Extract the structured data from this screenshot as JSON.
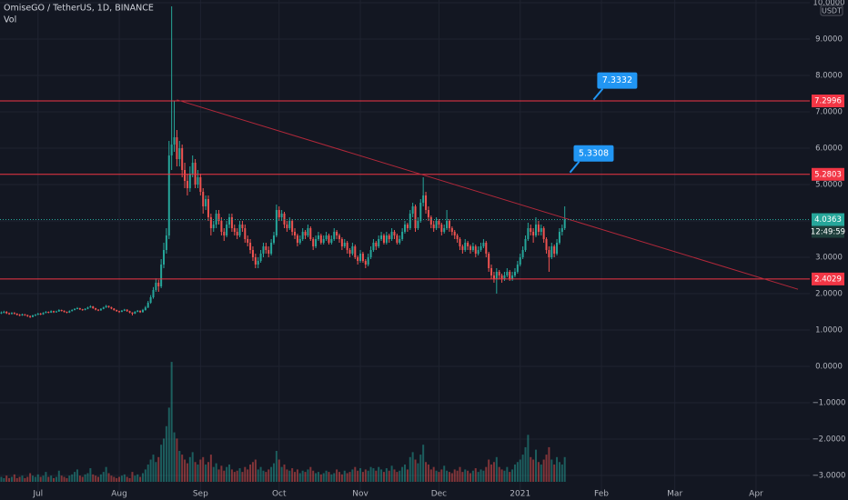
{
  "chart_data": {
    "type": "candlestick",
    "title": "OmiseGO / TetherUS, 1D, BINANCE",
    "volume_label": "Vol",
    "unit": "USDT",
    "up_color": "#26a69a",
    "down_color": "#ef5350",
    "level_color": "#f23645",
    "callout_color": "#2196f3",
    "grid": true,
    "xlim": [
      -0.5,
      308.5
    ],
    "xticks": [
      {
        "value": 14,
        "label": "Jul"
      },
      {
        "value": 45,
        "label": "Aug"
      },
      {
        "value": 76,
        "label": "Sep"
      },
      {
        "value": 106,
        "label": "Oct"
      },
      {
        "value": 137,
        "label": "Nov"
      },
      {
        "value": 167,
        "label": "Dec"
      },
      {
        "value": 198,
        "label": "2021"
      },
      {
        "value": 229,
        "label": "Feb"
      },
      {
        "value": 257,
        "label": "Mar"
      },
      {
        "value": 288,
        "label": "Apr"
      }
    ],
    "ylim": [
      -3.425,
      10.075
    ],
    "yticks": [
      {
        "value": 10,
        "label": "10.0000"
      },
      {
        "value": 9,
        "label": "9.0000"
      },
      {
        "value": 8,
        "label": "8.0000"
      },
      {
        "value": 7,
        "label": "7.0000"
      },
      {
        "value": 6,
        "label": "6.0000"
      },
      {
        "value": 5,
        "label": "5.0000"
      },
      {
        "value": 4,
        "label": "4.0000"
      },
      {
        "value": 3,
        "label": "3.0000"
      },
      {
        "value": 2,
        "label": "2.0000"
      },
      {
        "value": 1,
        "label": "1.0000"
      },
      {
        "value": 0,
        "label": "0.0000"
      },
      {
        "value": -1,
        "label": "−1.0000"
      },
      {
        "value": -2,
        "label": "−2.0000"
      },
      {
        "value": -3,
        "label": "−3.0000"
      }
    ],
    "vol_ylim": [
      0,
      100
    ],
    "levels": [
      7.2996,
      5.2803,
      2.4029
    ],
    "last_price": 4.0363,
    "countdown": "12:49:59",
    "trendline": {
      "x": [
        67,
        304
      ],
      "y": [
        7.33,
        2.12
      ]
    },
    "callouts": [
      {
        "x": 226,
        "value": 7.3332
      },
      {
        "x": 217,
        "value": 5.3308
      }
    ],
    "candles": [
      [
        1.46,
        1.51,
        1.44,
        1.48
      ],
      [
        1.48,
        1.53,
        1.46,
        1.5
      ],
      [
        1.5,
        1.52,
        1.44,
        1.46
      ],
      [
        1.46,
        1.48,
        1.42,
        1.44
      ],
      [
        1.44,
        1.49,
        1.43,
        1.47
      ],
      [
        1.47,
        1.49,
        1.43,
        1.45
      ],
      [
        1.45,
        1.46,
        1.4,
        1.42
      ],
      [
        1.42,
        1.44,
        1.38,
        1.4
      ],
      [
        1.4,
        1.45,
        1.39,
        1.43
      ],
      [
        1.43,
        1.44,
        1.39,
        1.41
      ],
      [
        1.41,
        1.42,
        1.36,
        1.38
      ],
      [
        1.38,
        1.4,
        1.33,
        1.36
      ],
      [
        1.36,
        1.42,
        1.35,
        1.4
      ],
      [
        1.4,
        1.44,
        1.38,
        1.42
      ],
      [
        1.42,
        1.47,
        1.41,
        1.45
      ],
      [
        1.45,
        1.47,
        1.41,
        1.43
      ],
      [
        1.43,
        1.49,
        1.42,
        1.47
      ],
      [
        1.47,
        1.52,
        1.46,
        1.5
      ],
      [
        1.5,
        1.51,
        1.46,
        1.48
      ],
      [
        1.48,
        1.54,
        1.47,
        1.52
      ],
      [
        1.52,
        1.53,
        1.47,
        1.49
      ],
      [
        1.49,
        1.53,
        1.48,
        1.51
      ],
      [
        1.51,
        1.57,
        1.5,
        1.55
      ],
      [
        1.55,
        1.56,
        1.51,
        1.53
      ],
      [
        1.53,
        1.54,
        1.48,
        1.5
      ],
      [
        1.5,
        1.51,
        1.46,
        1.48
      ],
      [
        1.48,
        1.54,
        1.47,
        1.52
      ],
      [
        1.52,
        1.57,
        1.51,
        1.55
      ],
      [
        1.55,
        1.6,
        1.54,
        1.58
      ],
      [
        1.58,
        1.63,
        1.57,
        1.6
      ],
      [
        1.6,
        1.61,
        1.55,
        1.57
      ],
      [
        1.57,
        1.58,
        1.53,
        1.55
      ],
      [
        1.55,
        1.6,
        1.54,
        1.58
      ],
      [
        1.58,
        1.64,
        1.57,
        1.62
      ],
      [
        1.62,
        1.68,
        1.61,
        1.65
      ],
      [
        1.65,
        1.66,
        1.58,
        1.6
      ],
      [
        1.6,
        1.61,
        1.54,
        1.56
      ],
      [
        1.56,
        1.57,
        1.52,
        1.54
      ],
      [
        1.54,
        1.6,
        1.53,
        1.58
      ],
      [
        1.58,
        1.64,
        1.57,
        1.62
      ],
      [
        1.62,
        1.69,
        1.61,
        1.66
      ],
      [
        1.66,
        1.67,
        1.61,
        1.63
      ],
      [
        1.63,
        1.64,
        1.57,
        1.59
      ],
      [
        1.59,
        1.6,
        1.53,
        1.55
      ],
      [
        1.55,
        1.56,
        1.5,
        1.52
      ],
      [
        1.52,
        1.53,
        1.47,
        1.5
      ],
      [
        1.5,
        1.55,
        1.49,
        1.53
      ],
      [
        1.53,
        1.58,
        1.52,
        1.56
      ],
      [
        1.56,
        1.57,
        1.5,
        1.52
      ],
      [
        1.52,
        1.53,
        1.46,
        1.48
      ],
      [
        1.48,
        1.49,
        1.4,
        1.45
      ],
      [
        1.45,
        1.52,
        1.44,
        1.5
      ],
      [
        1.5,
        1.55,
        1.49,
        1.53
      ],
      [
        1.53,
        1.54,
        1.47,
        1.49
      ],
      [
        1.49,
        1.58,
        1.48,
        1.55
      ],
      [
        1.55,
        1.66,
        1.53,
        1.62
      ],
      [
        1.62,
        1.8,
        1.6,
        1.75
      ],
      [
        1.75,
        1.96,
        1.72,
        1.9
      ],
      [
        1.9,
        2.18,
        1.86,
        2.1
      ],
      [
        2.1,
        2.42,
        2.05,
        2.3
      ],
      [
        2.3,
        2.38,
        2.05,
        2.2
      ],
      [
        2.2,
        2.95,
        2.15,
        2.8
      ],
      [
        2.8,
        3.4,
        2.7,
        3.2
      ],
      [
        3.2,
        3.8,
        3.1,
        3.6
      ],
      [
        3.6,
        6.2,
        3.5,
        5.8
      ],
      [
        5.8,
        9.9,
        5.4,
        6.1
      ],
      [
        6.1,
        7.3,
        5.9,
        6.3
      ],
      [
        6.3,
        6.5,
        5.5,
        5.7
      ],
      [
        5.7,
        6.2,
        5.5,
        6.0
      ],
      [
        6.0,
        6.1,
        5.2,
        5.4
      ],
      [
        5.4,
        5.6,
        4.9,
        5.1
      ],
      [
        5.1,
        5.3,
        4.7,
        4.9
      ],
      [
        4.9,
        5.5,
        4.8,
        5.3
      ],
      [
        5.3,
        5.8,
        5.2,
        5.6
      ],
      [
        5.6,
        5.7,
        4.9,
        5.0
      ],
      [
        5.0,
        5.4,
        4.9,
        5.2
      ],
      [
        5.2,
        5.3,
        4.7,
        4.8
      ],
      [
        4.8,
        4.9,
        4.2,
        4.4
      ],
      [
        4.4,
        4.7,
        4.3,
        4.6
      ],
      [
        4.6,
        4.7,
        4.0,
        4.1
      ],
      [
        4.1,
        4.2,
        3.6,
        3.8
      ],
      [
        3.8,
        4.0,
        3.7,
        3.9
      ],
      [
        3.9,
        4.3,
        3.8,
        4.2
      ],
      [
        4.2,
        4.3,
        3.9,
        4.0
      ],
      [
        4.0,
        4.1,
        3.6,
        3.7
      ],
      [
        3.7,
        3.8,
        3.45,
        3.6
      ],
      [
        3.6,
        4.0,
        3.55,
        3.9
      ],
      [
        3.9,
        4.2,
        3.8,
        4.1
      ],
      [
        4.1,
        4.2,
        3.7,
        3.8
      ],
      [
        3.8,
        3.9,
        3.6,
        3.7
      ],
      [
        3.7,
        3.8,
        3.5,
        3.6
      ],
      [
        3.6,
        4.0,
        3.55,
        3.9
      ],
      [
        3.9,
        4.0,
        3.7,
        3.8
      ],
      [
        3.8,
        3.9,
        3.4,
        3.5
      ],
      [
        3.5,
        3.6,
        3.3,
        3.4
      ],
      [
        3.4,
        3.5,
        3.1,
        3.2
      ],
      [
        3.2,
        3.3,
        2.9,
        3.0
      ],
      [
        3.0,
        3.1,
        2.7,
        2.8
      ],
      [
        2.8,
        3.0,
        2.7,
        2.9
      ],
      [
        2.9,
        3.2,
        2.85,
        3.1
      ],
      [
        3.1,
        3.4,
        3.0,
        3.3
      ],
      [
        3.3,
        3.4,
        3.1,
        3.2
      ],
      [
        3.2,
        3.3,
        3.0,
        3.1
      ],
      [
        3.1,
        3.5,
        3.05,
        3.4
      ],
      [
        3.4,
        3.7,
        3.35,
        3.6
      ],
      [
        3.6,
        4.45,
        3.55,
        4.3
      ],
      [
        4.3,
        4.4,
        4.0,
        4.1
      ],
      [
        4.1,
        4.3,
        4.0,
        4.2
      ],
      [
        4.2,
        4.25,
        3.8,
        3.9
      ],
      [
        3.9,
        4.0,
        3.7,
        3.8
      ],
      [
        3.8,
        4.1,
        3.75,
        4.0
      ],
      [
        4.0,
        4.05,
        3.6,
        3.7
      ],
      [
        3.7,
        3.8,
        3.5,
        3.6
      ],
      [
        3.6,
        3.65,
        3.3,
        3.4
      ],
      [
        3.4,
        3.6,
        3.35,
        3.5
      ],
      [
        3.5,
        3.8,
        3.45,
        3.7
      ],
      [
        3.7,
        3.75,
        3.5,
        3.6
      ],
      [
        3.6,
        3.9,
        3.55,
        3.8
      ],
      [
        3.8,
        3.85,
        3.45,
        3.5
      ],
      [
        3.5,
        3.55,
        3.2,
        3.3
      ],
      [
        3.3,
        3.6,
        3.25,
        3.5
      ],
      [
        3.5,
        3.7,
        3.45,
        3.6
      ],
      [
        3.6,
        3.65,
        3.35,
        3.4
      ],
      [
        3.4,
        3.6,
        3.35,
        3.5
      ],
      [
        3.5,
        3.7,
        3.45,
        3.6
      ],
      [
        3.6,
        3.65,
        3.35,
        3.4
      ],
      [
        3.4,
        3.6,
        3.35,
        3.5
      ],
      [
        3.5,
        3.8,
        3.45,
        3.7
      ],
      [
        3.7,
        3.75,
        3.5,
        3.6
      ],
      [
        3.6,
        3.65,
        3.4,
        3.5
      ],
      [
        3.5,
        3.55,
        3.2,
        3.3
      ],
      [
        3.3,
        3.5,
        3.25,
        3.4
      ],
      [
        3.4,
        3.45,
        3.1,
        3.2
      ],
      [
        3.2,
        3.25,
        3.0,
        3.1
      ],
      [
        3.1,
        3.4,
        3.05,
        3.3
      ],
      [
        3.3,
        3.35,
        2.95,
        3.0
      ],
      [
        3.0,
        3.05,
        2.8,
        2.9
      ],
      [
        2.9,
        3.2,
        2.85,
        3.1
      ],
      [
        3.1,
        3.15,
        2.85,
        2.9
      ],
      [
        2.9,
        2.95,
        2.7,
        2.8
      ],
      [
        2.8,
        3.1,
        2.75,
        3.0
      ],
      [
        3.0,
        3.3,
        2.95,
        3.2
      ],
      [
        3.2,
        3.5,
        3.15,
        3.4
      ],
      [
        3.4,
        3.45,
        3.2,
        3.3
      ],
      [
        3.3,
        3.6,
        3.25,
        3.5
      ],
      [
        3.5,
        3.7,
        3.45,
        3.6
      ],
      [
        3.6,
        3.65,
        3.35,
        3.4
      ],
      [
        3.4,
        3.7,
        3.35,
        3.6
      ],
      [
        3.6,
        3.65,
        3.4,
        3.5
      ],
      [
        3.5,
        3.8,
        3.45,
        3.7
      ],
      [
        3.7,
        3.75,
        3.5,
        3.6
      ],
      [
        3.6,
        3.65,
        3.35,
        3.4
      ],
      [
        3.4,
        3.6,
        3.35,
        3.5
      ],
      [
        3.5,
        3.8,
        3.45,
        3.7
      ],
      [
        3.7,
        4.0,
        3.65,
        3.9
      ],
      [
        3.9,
        3.95,
        3.7,
        3.8
      ],
      [
        3.8,
        4.3,
        3.75,
        4.2
      ],
      [
        4.2,
        4.5,
        4.1,
        4.4
      ],
      [
        4.4,
        4.45,
        3.7,
        3.8
      ],
      [
        3.8,
        4.1,
        3.75,
        4.0
      ],
      [
        4.0,
        4.6,
        3.95,
        4.5
      ],
      [
        4.5,
        5.2,
        4.4,
        4.7
      ],
      [
        4.7,
        4.8,
        4.2,
        4.3
      ],
      [
        4.3,
        4.4,
        4.0,
        4.1
      ],
      [
        4.1,
        4.15,
        3.8,
        3.9
      ],
      [
        3.9,
        4.0,
        3.7,
        3.8
      ],
      [
        3.8,
        4.1,
        3.75,
        4.0
      ],
      [
        4.0,
        4.05,
        3.8,
        3.9
      ],
      [
        3.9,
        3.95,
        3.6,
        3.7
      ],
      [
        3.7,
        3.9,
        3.65,
        3.8
      ],
      [
        3.8,
        4.3,
        3.75,
        4.0
      ],
      [
        4.0,
        4.05,
        3.7,
        3.8
      ],
      [
        3.8,
        3.85,
        3.6,
        3.7
      ],
      [
        3.7,
        3.75,
        3.5,
        3.6
      ],
      [
        3.6,
        3.65,
        3.4,
        3.5
      ],
      [
        3.5,
        3.55,
        3.2,
        3.3
      ],
      [
        3.3,
        3.35,
        3.1,
        3.2
      ],
      [
        3.2,
        3.5,
        3.15,
        3.4
      ],
      [
        3.4,
        3.45,
        3.2,
        3.3
      ],
      [
        3.3,
        3.35,
        3.1,
        3.2
      ],
      [
        3.2,
        3.4,
        3.15,
        3.3
      ],
      [
        3.3,
        3.35,
        3.0,
        3.1
      ],
      [
        3.1,
        3.3,
        3.05,
        3.2
      ],
      [
        3.2,
        3.4,
        3.15,
        3.3
      ],
      [
        3.3,
        3.5,
        3.25,
        3.4
      ],
      [
        3.4,
        3.45,
        3.0,
        3.1
      ],
      [
        3.1,
        3.15,
        2.6,
        2.7
      ],
      [
        2.7,
        2.8,
        2.4,
        2.5
      ],
      [
        2.5,
        2.6,
        2.3,
        2.4
      ],
      [
        2.4,
        2.7,
        2.0,
        2.6
      ],
      [
        2.6,
        2.65,
        2.4,
        2.5
      ],
      [
        2.5,
        2.55,
        2.3,
        2.4
      ],
      [
        2.4,
        2.6,
        2.35,
        2.5
      ],
      [
        2.5,
        2.7,
        2.45,
        2.6
      ],
      [
        2.6,
        2.65,
        2.35,
        2.4
      ],
      [
        2.4,
        2.6,
        2.35,
        2.5
      ],
      [
        2.5,
        2.7,
        2.45,
        2.6
      ],
      [
        2.6,
        2.9,
        2.55,
        2.8
      ],
      [
        2.8,
        3.1,
        2.75,
        3.0
      ],
      [
        3.0,
        3.3,
        2.95,
        3.2
      ],
      [
        3.2,
        3.6,
        3.15,
        3.5
      ],
      [
        3.5,
        3.95,
        3.45,
        3.8
      ],
      [
        3.8,
        3.9,
        3.6,
        3.7
      ],
      [
        3.7,
        3.8,
        3.4,
        3.6
      ],
      [
        3.6,
        4.1,
        3.55,
        3.9
      ],
      [
        3.9,
        4.0,
        3.6,
        3.7
      ],
      [
        3.7,
        3.9,
        3.6,
        3.8
      ],
      [
        3.8,
        3.85,
        3.4,
        3.5
      ],
      [
        3.5,
        3.55,
        3.1,
        3.2
      ],
      [
        3.2,
        3.3,
        2.6,
        3.0
      ],
      [
        3.0,
        3.4,
        2.95,
        3.3
      ],
      [
        3.3,
        3.35,
        3.0,
        3.1
      ],
      [
        3.1,
        3.5,
        3.05,
        3.4
      ],
      [
        3.4,
        3.8,
        3.35,
        3.7
      ],
      [
        3.7,
        3.9,
        3.6,
        3.8
      ],
      [
        3.8,
        4.4,
        3.75,
        4.04
      ]
    ],
    "volume": [
      4,
      3,
      5,
      3,
      4,
      6,
      3,
      4,
      5,
      3,
      4,
      7,
      5,
      4,
      6,
      4,
      5,
      8,
      4,
      5,
      3,
      4,
      9,
      5,
      4,
      3,
      5,
      6,
      8,
      10,
      5,
      4,
      6,
      7,
      11,
      6,
      5,
      4,
      6,
      8,
      12,
      7,
      5,
      4,
      3,
      4,
      5,
      6,
      4,
      3,
      8,
      5,
      6,
      4,
      7,
      10,
      14,
      18,
      22,
      16,
      20,
      30,
      35,
      45,
      60,
      97,
      40,
      35,
      25,
      22,
      18,
      15,
      20,
      24,
      16,
      14,
      18,
      20,
      14,
      16,
      22,
      12,
      15,
      10,
      13,
      9,
      12,
      14,
      10,
      8,
      9,
      11,
      8,
      12,
      10,
      14,
      16,
      18,
      10,
      12,
      9,
      8,
      10,
      12,
      15,
      25,
      18,
      12,
      14,
      10,
      9,
      11,
      8,
      10,
      7,
      9,
      8,
      10,
      12,
      9,
      7,
      8,
      6,
      7,
      9,
      8,
      6,
      7,
      10,
      8,
      6,
      9,
      7,
      8,
      10,
      12,
      9,
      11,
      8,
      10,
      9,
      12,
      11,
      9,
      12,
      10,
      8,
      11,
      9,
      13,
      10,
      8,
      9,
      12,
      14,
      10,
      20,
      24,
      18,
      15,
      22,
      30,
      16,
      14,
      10,
      12,
      9,
      8,
      10,
      13,
      9,
      8,
      7,
      10,
      9,
      12,
      8,
      10,
      9,
      7,
      9,
      11,
      8,
      10,
      9,
      12,
      18,
      14,
      16,
      20,
      12,
      10,
      9,
      12,
      8,
      10,
      14,
      16,
      18,
      22,
      28,
      38,
      20,
      18,
      26,
      16,
      14,
      18,
      22,
      28,
      18,
      14,
      20,
      16,
      14,
      20
    ]
  }
}
